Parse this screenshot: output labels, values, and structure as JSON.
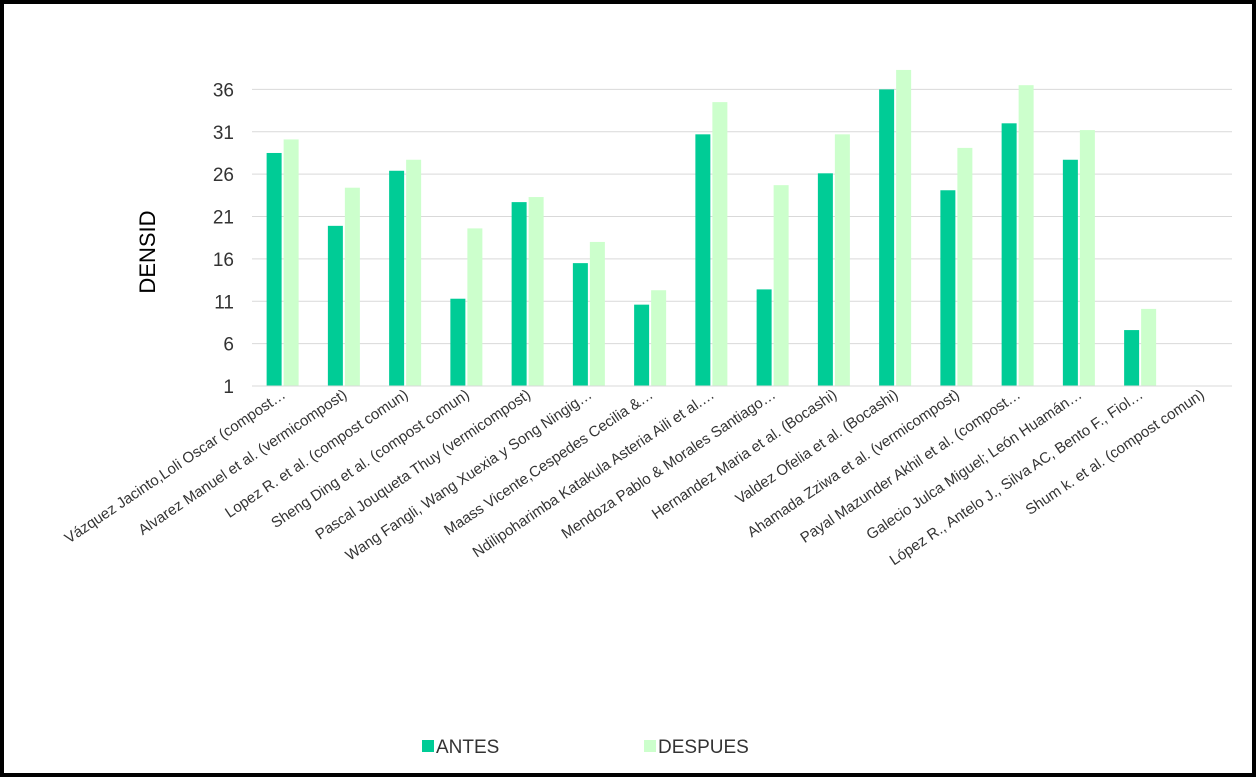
{
  "chart_data": {
    "type": "bar",
    "title": "",
    "ylabel": "DENSID",
    "xlabel": "",
    "ylim": [
      1,
      39
    ],
    "yticks": [
      1,
      6,
      11,
      16,
      21,
      26,
      31,
      36
    ],
    "grid": true,
    "legend_position": "bottom",
    "categories": [
      "Vázquez Jacinto,Loli Oscar (compost…",
      "Alvarez Manuel et al.  (vermicompost)",
      "Lopez R. et al. (compost comun)",
      "Sheng Ding et al. (compost comun)",
      "Pascal Jouqueta Thuy (vermicompost)",
      "Wang Fangli, Wang Xuexia y Song Ningig…",
      "Maass Vicente,Cespedes Cecilia &…",
      "Ndilipoharimba Katakula Asteria Aili et al.…",
      "Mendoza Pablo & Morales Santiago…",
      "Hernandez Maria et al. (Bocashi)",
      "Valdez Ofelia et al. (Bocashi)",
      "Ahamada Zziwa et al. (vermicompost)",
      "Payal Mazunder Akhil et al. (compost…",
      "Galecio Julca Miguel; León Huamán…",
      "López R., Antelo J., Silva AC, Bento F., Fiol…",
      "Shum k. et al. (compost comun)"
    ],
    "series": [
      {
        "name": "ANTES",
        "color": "#00cc96",
        "values": [
          28.5,
          19.9,
          26.4,
          11.3,
          22.7,
          15.5,
          10.6,
          30.7,
          12.4,
          26.1,
          36.0,
          24.1,
          32.0,
          27.7,
          7.6,
          null
        ]
      },
      {
        "name": "DESPUES",
        "color": "#ccffcc",
        "values": [
          30.1,
          24.4,
          27.7,
          19.6,
          23.3,
          18.0,
          12.3,
          34.5,
          24.7,
          30.7,
          38.3,
          29.1,
          36.5,
          31.2,
          10.1,
          null
        ]
      }
    ]
  }
}
